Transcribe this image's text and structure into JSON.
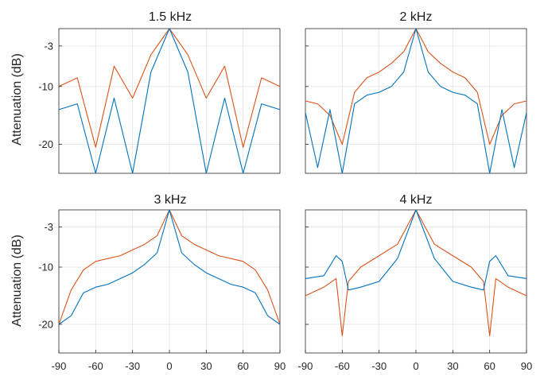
{
  "colors": {
    "series_red": "#d95319",
    "series_blue": "#0072bd"
  },
  "chart_data": [
    {
      "type": "line",
      "title": "1.5 kHz",
      "ylabel": "Attenuation (dB)",
      "xlabel": "",
      "xlim": [
        -90,
        90
      ],
      "ylim": [
        -25,
        0
      ],
      "grid": true,
      "x_ticks": [],
      "y_ticks": [
        -3,
        -10,
        -20
      ],
      "y_tick_labels": [
        "-3",
        "-10",
        "-20"
      ],
      "x": [
        -90,
        -75,
        -60,
        -45,
        -30,
        -15,
        0,
        15,
        30,
        45,
        60,
        75,
        90
      ],
      "series": [
        {
          "values": [
            -10.0,
            -8.5,
            -20.5,
            -6.5,
            -12.0,
            -4.5,
            0.0,
            -4.5,
            -12.0,
            -6.5,
            -20.5,
            -8.5,
            -10.0
          ]
        },
        {
          "values": [
            -14.0,
            -13.0,
            -26.0,
            -12.0,
            -28.0,
            -7.5,
            0.0,
            -7.5,
            -28.0,
            -12.0,
            -26.0,
            -13.0,
            -14.0
          ]
        }
      ]
    },
    {
      "type": "line",
      "title": "2 kHz",
      "ylabel": "",
      "xlabel": "",
      "xlim": [
        -90,
        90
      ],
      "ylim": [
        -25,
        0
      ],
      "grid": true,
      "x_ticks": [],
      "y_ticks": [
        -3,
        -10,
        -20
      ],
      "y_tick_labels": [],
      "x": [
        -90,
        -80,
        -70,
        -60,
        -50,
        -40,
        -30,
        -20,
        -10,
        0,
        10,
        20,
        30,
        40,
        50,
        60,
        70,
        80,
        90
      ],
      "series": [
        {
          "values": [
            -12.5,
            -13.0,
            -15.0,
            -20.0,
            -11.0,
            -8.5,
            -7.5,
            -6.0,
            -4.0,
            0.0,
            -4.0,
            -6.0,
            -7.5,
            -8.5,
            -11.0,
            -20.0,
            -15.0,
            -13.0,
            -12.5
          ]
        },
        {
          "values": [
            -14.5,
            -24.0,
            -14.0,
            -26.0,
            -13.0,
            -11.5,
            -11.0,
            -10.0,
            -7.5,
            0.0,
            -7.5,
            -10.0,
            -11.0,
            -11.5,
            -13.0,
            -26.0,
            -14.0,
            -24.0,
            -14.5
          ]
        }
      ]
    },
    {
      "type": "line",
      "title": "3 kHz",
      "ylabel": "Attenuation (dB)",
      "xlabel": "",
      "xlim": [
        -90,
        90
      ],
      "ylim": [
        -25,
        0
      ],
      "grid": true,
      "x_ticks": [
        -90,
        -60,
        -30,
        0,
        30,
        60,
        90
      ],
      "x_tick_labels": [
        "-90",
        "-60",
        "-30",
        "0",
        "30",
        "60",
        "90"
      ],
      "y_ticks": [
        -3,
        -10,
        -20
      ],
      "y_tick_labels": [
        "-3",
        "-10",
        "-20"
      ],
      "x": [
        -90,
        -80,
        -70,
        -60,
        -50,
        -40,
        -30,
        -20,
        -10,
        0,
        10,
        20,
        30,
        40,
        50,
        60,
        70,
        80,
        90
      ],
      "series": [
        {
          "values": [
            -20.0,
            -14.0,
            -10.5,
            -9.0,
            -8.5,
            -8.0,
            -7.0,
            -6.0,
            -4.5,
            0.0,
            -4.5,
            -6.0,
            -7.0,
            -8.0,
            -8.5,
            -9.0,
            -10.5,
            -14.0,
            -20.0
          ]
        },
        {
          "values": [
            -20.0,
            -18.5,
            -14.5,
            -13.5,
            -13.0,
            -12.0,
            -11.0,
            -9.5,
            -7.5,
            0.0,
            -7.5,
            -9.5,
            -11.0,
            -12.0,
            -13.0,
            -13.5,
            -14.5,
            -18.5,
            -20.0
          ]
        }
      ]
    },
    {
      "type": "line",
      "title": "4 kHz",
      "ylabel": "",
      "xlabel": "",
      "xlim": [
        -90,
        90
      ],
      "ylim": [
        -25,
        0
      ],
      "grid": true,
      "x_ticks": [
        -90,
        -60,
        -30,
        0,
        30,
        60,
        90
      ],
      "x_tick_labels": [
        "-90",
        "-60",
        "-30",
        "0",
        "30",
        "60",
        "90"
      ],
      "y_ticks": [
        -3,
        -10,
        -20
      ],
      "y_tick_labels": [],
      "x": [
        -90,
        -75,
        -65,
        -60,
        -55,
        -45,
        -30,
        -15,
        0,
        15,
        30,
        45,
        55,
        60,
        65,
        75,
        90
      ],
      "series": [
        {
          "values": [
            -15.0,
            -13.5,
            -12.0,
            -22.0,
            -12.5,
            -10.0,
            -8.0,
            -6.0,
            0.0,
            -6.0,
            -8.0,
            -10.0,
            -12.5,
            -22.0,
            -12.0,
            -13.5,
            -15.0
          ]
        },
        {
          "values": [
            -12.0,
            -11.5,
            -8.0,
            -9.0,
            -14.0,
            -13.5,
            -12.5,
            -8.5,
            0.0,
            -8.5,
            -12.5,
            -13.5,
            -14.0,
            -9.0,
            -8.0,
            -11.5,
            -12.0
          ]
        }
      ]
    }
  ]
}
